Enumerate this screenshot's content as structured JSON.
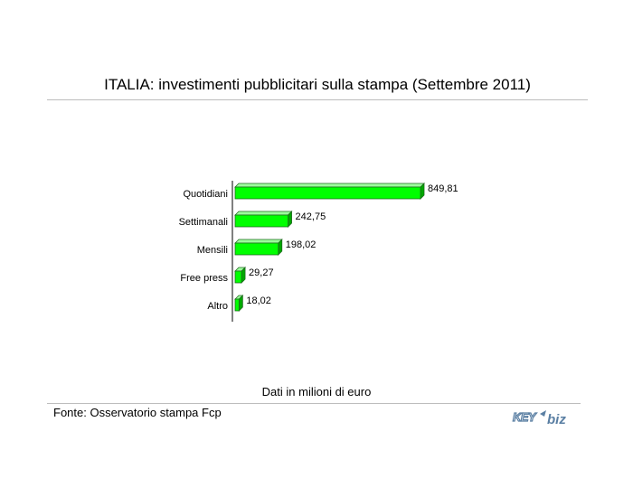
{
  "chart_data": {
    "type": "bar",
    "orientation": "horizontal",
    "title": "ITALIA: investimenti pubblicitari sulla stampa (Settembre 2011)",
    "categories": [
      "Quotidiani",
      "Settimanali",
      "Mensili",
      "Free press",
      "Altro"
    ],
    "values": [
      849.81,
      242.75,
      198.02,
      29.27,
      18.02
    ],
    "value_labels": [
      "849,81",
      "242,75",
      "198,02",
      "29,27",
      "18,02"
    ],
    "bar_color": "#00ff00",
    "bar_style": "3d",
    "legend": "none",
    "grid": false,
    "xlim": [
      0,
      849.81
    ]
  },
  "footer": {
    "note": "Dati in milioni di euro",
    "source": "Fonte: Osservatorio stampa Fcp"
  },
  "logo": {
    "text_left": "KEY",
    "text_right": "biz",
    "color": "#5a7fa3"
  }
}
